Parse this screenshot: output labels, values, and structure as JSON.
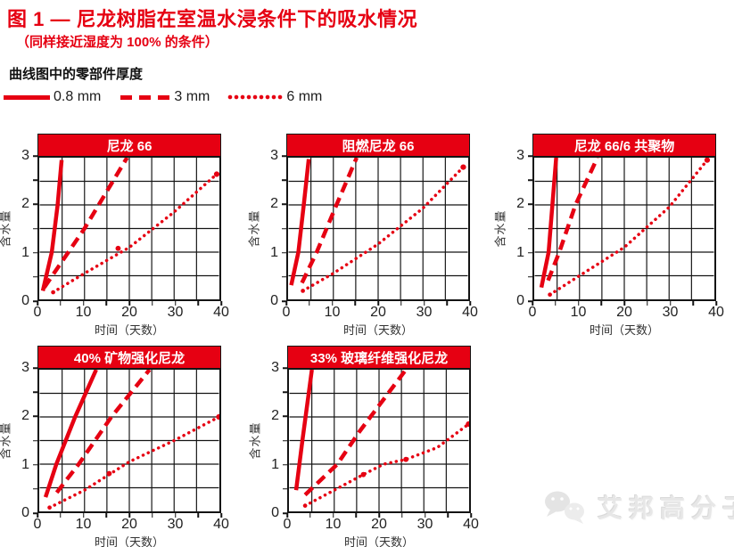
{
  "title": "图 1 — 尼龙树脂在室温水浸条件下的吸水情况",
  "subtitle": "（同样接近湿度为 100% 的条件）",
  "legend": {
    "header": "曲线图中的零部件厚度",
    "items": [
      {
        "label": "0.8 mm",
        "style": "solid"
      },
      {
        "label": "3 mm",
        "style": "dashed"
      },
      {
        "label": "6 mm",
        "style": "dotted"
      }
    ]
  },
  "colors": {
    "accent": "#e60012",
    "grid": "#141414",
    "text": "#222222",
    "header_text": "#ffffff",
    "watermark": "#e7e7e7"
  },
  "watermark": {
    "icon": "wechat-icon",
    "text": "艾邦高分子"
  },
  "chart_data": [
    {
      "type": "line",
      "title": "尼龙 66",
      "xlabel": "时间（天数）",
      "ylabel": "含水量",
      "xlim": [
        0,
        40
      ],
      "ylim": [
        0,
        3
      ],
      "xticks": [
        0,
        10,
        20,
        30,
        40
      ],
      "yticks": [
        0,
        1,
        2,
        3
      ],
      "x_minor_step": 5,
      "y_minor_step": 0.5,
      "grid": true,
      "series": [
        {
          "name": "0.8 mm",
          "style": "solid",
          "points": [
            [
              0.7,
              0.18
            ],
            [
              2.7,
              1.0
            ],
            [
              4.0,
              2.0
            ],
            [
              4.9,
              2.95
            ]
          ]
        },
        {
          "name": "3 mm",
          "style": "dashed",
          "points": [
            [
              1.0,
              0.25
            ],
            [
              10,
              1.5
            ],
            [
              19.5,
              3.0
            ]
          ]
        },
        {
          "name": "6 mm",
          "style": "dotted",
          "points": [
            [
              3,
              0.15
            ],
            [
              10,
              0.55
            ],
            [
              20,
              1.1
            ],
            [
              30,
              1.85
            ],
            [
              39.5,
              2.65
            ]
          ],
          "marker_points": [
            [
              17.5,
              1.08
            ]
          ]
        }
      ]
    },
    {
      "type": "line",
      "title": "阻燃尼龙 66",
      "xlabel": "时间（天数）",
      "ylabel": "含水量",
      "xlim": [
        0,
        40
      ],
      "ylim": [
        0,
        3
      ],
      "xticks": [
        0,
        10,
        20,
        30,
        40
      ],
      "yticks": [
        0,
        1,
        2,
        3
      ],
      "x_minor_step": 5,
      "y_minor_step": 0.5,
      "grid": true,
      "series": [
        {
          "name": "0.8 mm",
          "style": "solid",
          "points": [
            [
              0.6,
              0.3
            ],
            [
              2.2,
              1.0
            ],
            [
              3.4,
              2.0
            ],
            [
              4.5,
              2.97
            ]
          ]
        },
        {
          "name": "3 mm",
          "style": "dashed",
          "points": [
            [
              3.0,
              0.35
            ],
            [
              6.3,
              1.0
            ],
            [
              10.7,
              2.0
            ],
            [
              15.2,
              3.0
            ]
          ]
        },
        {
          "name": "6 mm",
          "style": "dotted",
          "points": [
            [
              3.2,
              0.18
            ],
            [
              10,
              0.55
            ],
            [
              20,
              1.17
            ],
            [
              30,
              1.93
            ],
            [
              39,
              2.8
            ]
          ]
        }
      ]
    },
    {
      "type": "line",
      "title": "尼龙 66/6 共聚物",
      "xlabel": "时间（天数）",
      "ylabel": "含水量",
      "xlim": [
        0,
        40
      ],
      "ylim": [
        0,
        3
      ],
      "xticks": [
        0,
        10,
        20,
        30,
        40
      ],
      "yticks": [
        0,
        1,
        2,
        3
      ],
      "x_minor_step": 5,
      "y_minor_step": 0.5,
      "grid": true,
      "series": [
        {
          "name": "0.8 mm",
          "style": "solid",
          "points": [
            [
              1.5,
              0.25
            ],
            [
              3.1,
              1.0
            ],
            [
              4.8,
              3.0
            ]
          ]
        },
        {
          "name": "3 mm",
          "style": "dashed",
          "points": [
            [
              3.0,
              0.4
            ],
            [
              5.5,
              1.0
            ],
            [
              9.1,
              2.0
            ],
            [
              14,
              3.0
            ]
          ]
        },
        {
          "name": "6 mm",
          "style": "dotted",
          "points": [
            [
              3.4,
              0.1
            ],
            [
              10,
              0.5
            ],
            [
              20,
              1.1
            ],
            [
              30,
              1.95
            ],
            [
              38.5,
              2.95
            ]
          ]
        }
      ]
    },
    {
      "type": "line",
      "title": "40% 矿物强化尼龙",
      "xlabel": "时间（天数）",
      "ylabel": "含水量",
      "xlim": [
        0,
        40
      ],
      "ylim": [
        0,
        3
      ],
      "xticks": [
        0,
        10,
        20,
        30,
        40
      ],
      "yticks": [
        0,
        1,
        2,
        3
      ],
      "x_minor_step": 5,
      "y_minor_step": 0.5,
      "grid": true,
      "series": [
        {
          "name": "0.8 mm",
          "style": "solid",
          "points": [
            [
              1.3,
              0.3
            ],
            [
              3.7,
              1.0
            ],
            [
              7.9,
              2.0
            ],
            [
              12.6,
              3.0
            ]
          ]
        },
        {
          "name": "3 mm",
          "style": "dashed",
          "points": [
            [
              3.8,
              0.4
            ],
            [
              8.7,
              1.0
            ],
            [
              16,
              2.0
            ],
            [
              24.5,
              3.0
            ]
          ]
        },
        {
          "name": "6 mm",
          "style": "dotted",
          "points": [
            [
              2.2,
              0.08
            ],
            [
              10,
              0.45
            ],
            [
              20,
              1.05
            ],
            [
              30,
              1.5
            ],
            [
              40,
              2.0
            ]
          ],
          "marker_points": [
            [
              15.5,
              0.8
            ]
          ]
        }
      ]
    },
    {
      "type": "line",
      "title": "33% 玻璃纤维强化尼龙",
      "xlabel": "时间（天数）",
      "ylabel": "含水量",
      "xlim": [
        0,
        40
      ],
      "ylim": [
        0,
        3
      ],
      "xticks": [
        0,
        10,
        20,
        30,
        40
      ],
      "yticks": [
        0,
        1,
        2,
        3
      ],
      "x_minor_step": 5,
      "y_minor_step": 0.5,
      "grid": true,
      "series": [
        {
          "name": "0.8 mm",
          "style": "solid",
          "points": [
            [
              1.5,
              0.45
            ],
            [
              2.9,
              1.5
            ],
            [
              5,
              3.0
            ]
          ]
        },
        {
          "name": "3 mm",
          "style": "dashed",
          "points": [
            [
              3.5,
              0.35
            ],
            [
              10.7,
              1.0
            ],
            [
              15.7,
              1.7
            ],
            [
              26,
              3.0
            ]
          ]
        },
        {
          "name": "6 mm",
          "style": "dotted",
          "points": [
            [
              3.5,
              0.12
            ],
            [
              10,
              0.45
            ],
            [
              16.5,
              0.78
            ],
            [
              21,
              1.0
            ],
            [
              26,
              1.1
            ],
            [
              33,
              1.35
            ],
            [
              40,
              1.85
            ]
          ],
          "marker_points": [
            [
              16.5,
              0.78
            ],
            [
              26,
              1.1
            ]
          ]
        }
      ]
    }
  ]
}
